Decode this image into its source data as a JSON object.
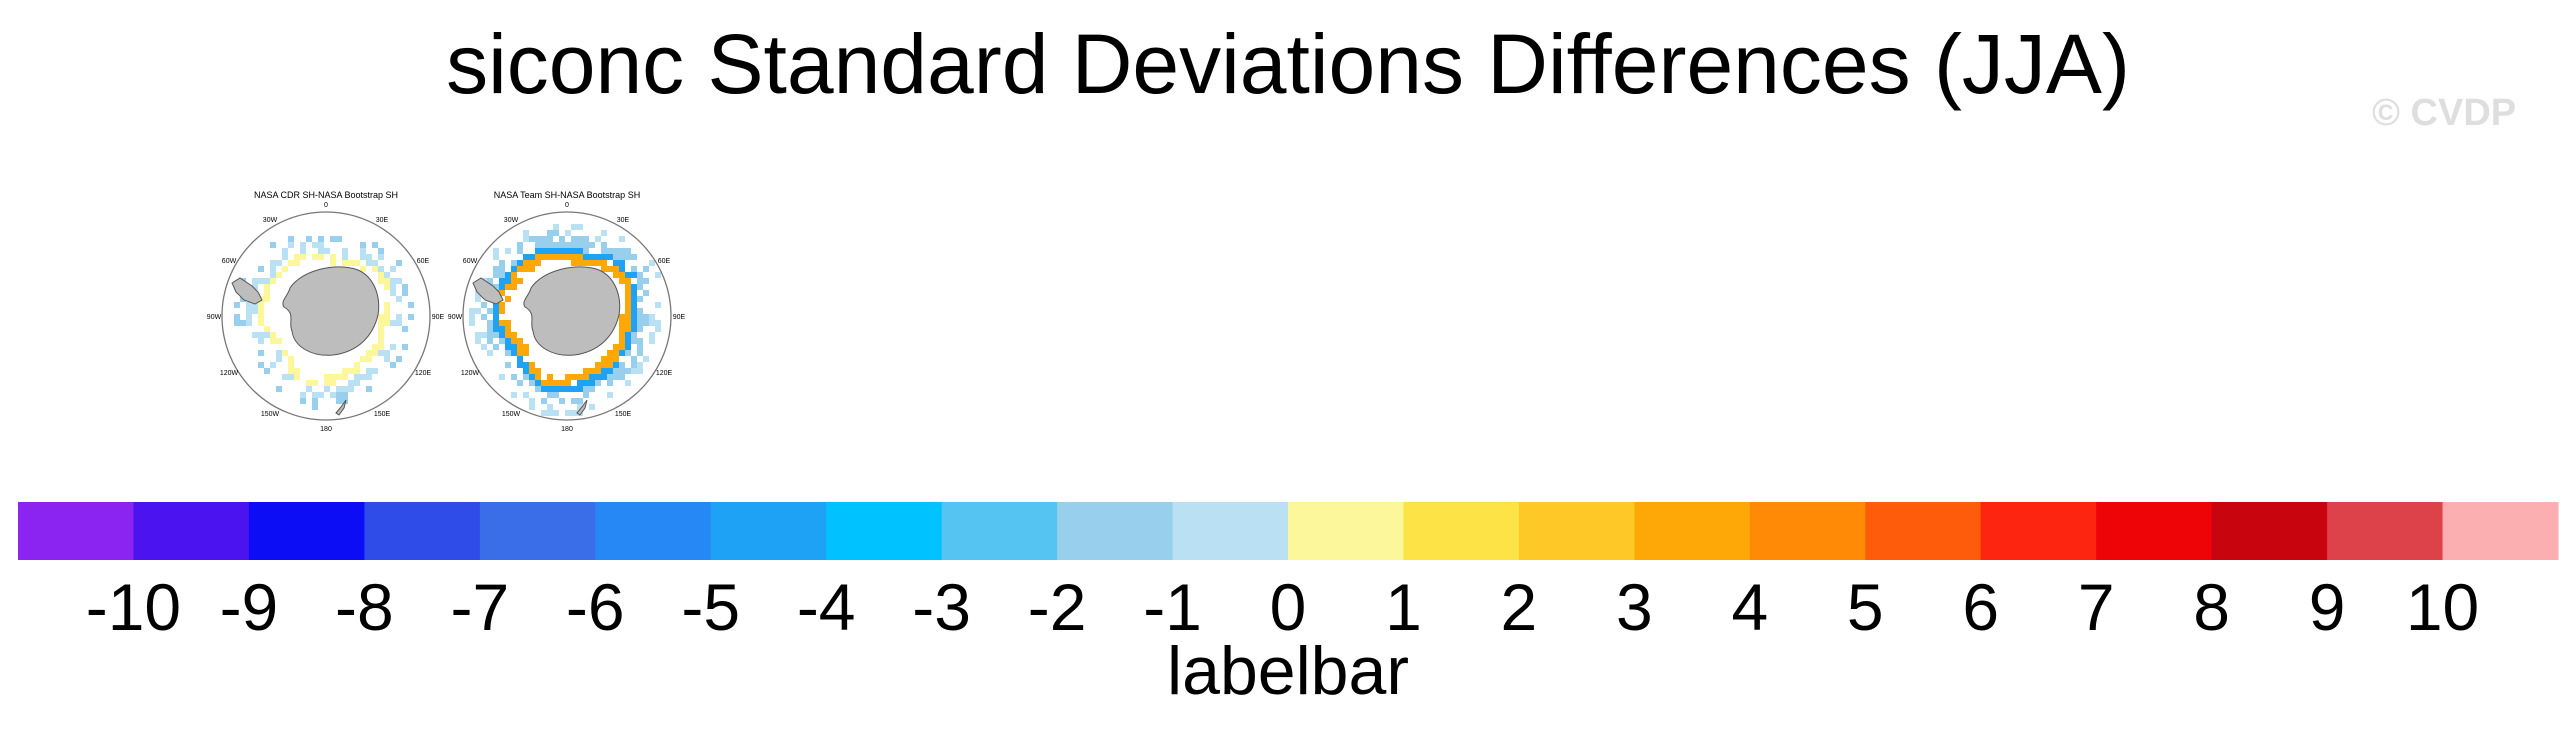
{
  "title": "siconc Standard Deviations Differences (JJA)",
  "watermark": "© CVDP",
  "panels": [
    {
      "title": "NASA CDR SH-NASA Bootstrap SH",
      "lon_labels": [
        "0",
        "30E",
        "60E",
        "90E",
        "120E",
        "150E",
        "180",
        "150W",
        "120W",
        "90W",
        "60W",
        "30W"
      ]
    },
    {
      "title": "NASA Team SH-NASA Bootstrap SH",
      "lon_labels": [
        "0",
        "30E",
        "60E",
        "90E",
        "120E",
        "150E",
        "180",
        "150W",
        "120W",
        "90W",
        "60W",
        "30W"
      ]
    }
  ],
  "chart_data": {
    "type": "heatmap",
    "title": "siconc Standard Deviations Differences (JJA)",
    "projection": "polar stereographic (south pole)",
    "maps": [
      {
        "name": "NASA CDR SH-NASA Bootstrap SH",
        "rings": [
          {
            "from_colatitude_deg": 22,
            "to_colatitude_deg": 25,
            "value_bin": [
              0,
              1
            ],
            "coverage": 0.8
          },
          {
            "from_colatitude_deg": 25,
            "to_colatitude_deg": 30,
            "value_bin": [
              -1,
              0
            ],
            "coverage": 0.45
          },
          {
            "from_colatitude_deg": 30,
            "to_colatitude_deg": 34,
            "value_bin": [
              -2,
              -1
            ],
            "coverage": 0.2
          }
        ]
      },
      {
        "name": "NASA Team SH-NASA Bootstrap SH",
        "rings": [
          {
            "from_colatitude_deg": 22,
            "to_colatitude_deg": 25.5,
            "value_bin": [
              2,
              4
            ],
            "coverage": 0.85
          },
          {
            "from_colatitude_deg": 25.5,
            "to_colatitude_deg": 28,
            "value_bin": [
              -6,
              -4
            ],
            "coverage": 0.9
          },
          {
            "from_colatitude_deg": 28,
            "to_colatitude_deg": 33,
            "value_bin": [
              -2,
              -1
            ],
            "coverage": 0.55
          },
          {
            "from_colatitude_deg": 33,
            "to_colatitude_deg": 37,
            "value_bin": [
              -1,
              0
            ],
            "coverage": 0.3
          }
        ]
      }
    ],
    "colorbar": {
      "label": "labelbar",
      "ticks": [
        "-10",
        "-9",
        "-8",
        "-7",
        "-6",
        "-5",
        "-4",
        "-3",
        "-2",
        "-1",
        "0",
        "1",
        "2",
        "3",
        "4",
        "5",
        "6",
        "7",
        "8",
        "9",
        "10"
      ],
      "colors": [
        "#8b24f0",
        "#4a13f0",
        "#0d0df5",
        "#2f4be8",
        "#3a6de8",
        "#2688f5",
        "#1ea2f5",
        "#00c2ff",
        "#56c4f2",
        "#97cfec",
        "#bae0f4",
        "#fcf79a",
        "#fee346",
        "#fec926",
        "#fea808",
        "#fe8a06",
        "#fe5b0a",
        "#fe2510",
        "#ee0407",
        "#c8040e",
        "#dd4149",
        "#fcafb0"
      ]
    }
  }
}
